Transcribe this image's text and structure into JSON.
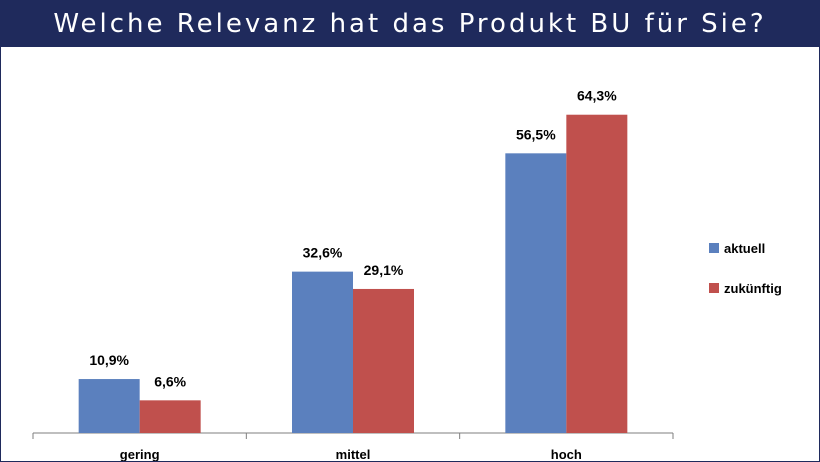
{
  "title": "Welche Relevanz hat das Produkt BU für Sie?",
  "colors": {
    "header_bg": "#1f2a5c",
    "aktuell": "#5b80be",
    "zukuenftig": "#c0504d"
  },
  "chart_data": {
    "type": "bar",
    "title": "Welche Relevanz hat das Produkt BU für Sie?",
    "categories": [
      "gering",
      "mittel",
      "hoch"
    ],
    "series": [
      {
        "name": "aktuell",
        "values": [
          10.9,
          32.6,
          56.5
        ],
        "labels": [
          "10,9%",
          "32,6%",
          "56,5%"
        ]
      },
      {
        "name": "zukünftig",
        "values": [
          6.6,
          29.1,
          64.3
        ],
        "labels": [
          "6,6%",
          "29,1%",
          "64,3%"
        ]
      }
    ],
    "ylim": [
      0,
      70
    ],
    "grid": false,
    "legend": "right"
  }
}
